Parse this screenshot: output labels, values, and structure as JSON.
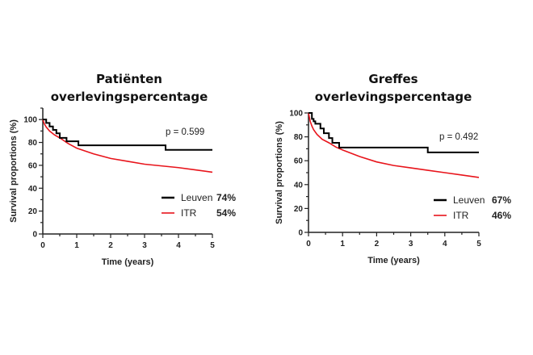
{
  "chart_data": [
    {
      "type": "line",
      "title": [
        "Patiënten",
        "overlevingspercentage"
      ],
      "xlabel": "Time (years)",
      "ylabel": "Survival proportions (%)",
      "xlim": [
        0,
        5
      ],
      "ylim": [
        0,
        110
      ],
      "xticks": [
        0,
        1,
        2,
        3,
        4,
        5
      ],
      "yticks": [
        0,
        20,
        40,
        60,
        80,
        100
      ],
      "annotation": "p = 0.599",
      "legend_position": "bottom-right",
      "series": [
        {
          "name": "Leuven",
          "final_label": "74%",
          "color": "#000000",
          "step": true,
          "x": [
            0,
            0.1,
            0.2,
            0.3,
            0.4,
            0.5,
            0.7,
            1.05,
            3.62,
            5
          ],
          "y": [
            100,
            97,
            94,
            91,
            88,
            84,
            81,
            77.5,
            73.5,
            73.5
          ]
        },
        {
          "name": "ITR",
          "final_label": "54%",
          "color": "#e8141b",
          "step": false,
          "x": [
            0,
            0.05,
            0.1,
            0.2,
            0.35,
            0.5,
            0.75,
            1,
            1.5,
            2,
            2.5,
            3,
            3.5,
            4,
            4.5,
            5
          ],
          "y": [
            100,
            96,
            93.5,
            90,
            86.5,
            84,
            79,
            75,
            70,
            66,
            63.5,
            61,
            59.5,
            58,
            56,
            54
          ]
        }
      ]
    },
    {
      "type": "line",
      "title": [
        "Greffes",
        "overlevingspercentage"
      ],
      "xlabel": "Time (years)",
      "ylabel": "Survival proportions (%)",
      "xlim": [
        0,
        5
      ],
      "ylim": [
        0,
        100
      ],
      "xticks": [
        0,
        1,
        2,
        3,
        4,
        5
      ],
      "yticks": [
        0,
        20,
        40,
        60,
        80,
        100
      ],
      "annotation": "p = 0.492",
      "legend_position": "bottom-right",
      "series": [
        {
          "name": "Leuven",
          "final_label": "67%",
          "color": "#000000",
          "step": true,
          "x": [
            0,
            0.1,
            0.15,
            0.2,
            0.35,
            0.45,
            0.6,
            0.7,
            0.9,
            3.5,
            5
          ],
          "y": [
            100,
            95,
            93,
            91,
            87,
            83,
            79,
            75,
            71,
            67,
            67
          ]
        },
        {
          "name": "ITR",
          "final_label": "46%",
          "color": "#e8141b",
          "step": false,
          "x": [
            0,
            0.05,
            0.1,
            0.15,
            0.25,
            0.4,
            0.6,
            0.8,
            1,
            1.5,
            2,
            2.5,
            3,
            3.5,
            4,
            4.5,
            5
          ],
          "y": [
            100,
            93,
            89,
            86,
            82,
            78,
            75,
            71.5,
            69,
            63.5,
            59,
            56,
            54,
            52,
            50,
            48,
            46
          ]
        }
      ]
    }
  ]
}
